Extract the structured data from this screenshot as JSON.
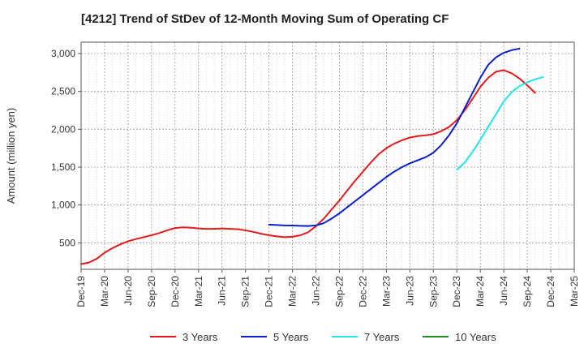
{
  "chart_data": {
    "type": "line",
    "title": "[4212]  Trend of StDev of 12-Month Moving Sum of Operating CF",
    "xlabel": "",
    "ylabel": "Amount (million yen)",
    "ylim": [
      150,
      3150
    ],
    "xlim": [
      "Dec-19",
      "Mar-25"
    ],
    "y_ticks": [
      500,
      1000,
      1500,
      2000,
      2500,
      3000
    ],
    "y_tick_labels": [
      "500",
      "1,000",
      "1,500",
      "2,000",
      "2,500",
      "3,000"
    ],
    "x_ticks": [
      "Dec-19",
      "Mar-20",
      "Jun-20",
      "Sep-20",
      "Dec-20",
      "Mar-21",
      "Jun-21",
      "Sep-21",
      "Dec-21",
      "Mar-22",
      "Jun-22",
      "Sep-22",
      "Dec-22",
      "Mar-23",
      "Jun-23",
      "Sep-23",
      "Dec-23",
      "Mar-24",
      "Jun-24",
      "Sep-24",
      "Dec-24",
      "Mar-25"
    ],
    "grid": true,
    "legend_position": "bottom",
    "series": [
      {
        "name": "3 Years",
        "color": "#e31a1c",
        "points": [
          [
            "Dec-19",
            220
          ],
          [
            "Jan-20",
            240
          ],
          [
            "Feb-20",
            290
          ],
          [
            "Mar-20",
            370
          ],
          [
            "Apr-20",
            430
          ],
          [
            "May-20",
            480
          ],
          [
            "Jun-20",
            520
          ],
          [
            "Jul-20",
            550
          ],
          [
            "Aug-20",
            575
          ],
          [
            "Sep-20",
            600
          ],
          [
            "Oct-20",
            630
          ],
          [
            "Nov-20",
            665
          ],
          [
            "Dec-20",
            695
          ],
          [
            "Jan-21",
            705
          ],
          [
            "Feb-21",
            700
          ],
          [
            "Mar-21",
            690
          ],
          [
            "Apr-21",
            685
          ],
          [
            "May-21",
            685
          ],
          [
            "Jun-21",
            690
          ],
          [
            "Jul-21",
            685
          ],
          [
            "Aug-21",
            680
          ],
          [
            "Sep-21",
            665
          ],
          [
            "Oct-21",
            645
          ],
          [
            "Nov-21",
            620
          ],
          [
            "Dec-21",
            600
          ],
          [
            "Jan-22",
            585
          ],
          [
            "Feb-22",
            575
          ],
          [
            "Mar-22",
            580
          ],
          [
            "Apr-22",
            600
          ],
          [
            "May-22",
            640
          ],
          [
            "Jun-22",
            720
          ],
          [
            "Jul-22",
            820
          ],
          [
            "Aug-22",
            940
          ],
          [
            "Sep-22",
            1060
          ],
          [
            "Oct-22",
            1190
          ],
          [
            "Nov-22",
            1320
          ],
          [
            "Dec-22",
            1440
          ],
          [
            "Jan-23",
            1560
          ],
          [
            "Feb-23",
            1670
          ],
          [
            "Mar-23",
            1750
          ],
          [
            "Apr-23",
            1810
          ],
          [
            "May-23",
            1855
          ],
          [
            "Jun-23",
            1890
          ],
          [
            "Jul-23",
            1910
          ],
          [
            "Aug-23",
            1920
          ],
          [
            "Sep-23",
            1935
          ],
          [
            "Oct-23",
            1975
          ],
          [
            "Nov-23",
            2030
          ],
          [
            "Dec-23",
            2120
          ],
          [
            "Jan-24",
            2250
          ],
          [
            "Feb-24",
            2400
          ],
          [
            "Mar-24",
            2560
          ],
          [
            "Apr-24",
            2680
          ],
          [
            "May-24",
            2760
          ],
          [
            "Jun-24",
            2780
          ],
          [
            "Jul-24",
            2740
          ],
          [
            "Aug-24",
            2670
          ],
          [
            "Sep-24",
            2580
          ],
          [
            "Oct-24",
            2480
          ]
        ]
      },
      {
        "name": "5 Years",
        "color": "#0a1fc8",
        "points": [
          [
            "Dec-21",
            740
          ],
          [
            "Jan-22",
            735
          ],
          [
            "Feb-22",
            730
          ],
          [
            "Mar-22",
            728
          ],
          [
            "Apr-22",
            725
          ],
          [
            "May-22",
            722
          ],
          [
            "Jun-22",
            730
          ],
          [
            "Jul-22",
            760
          ],
          [
            "Aug-22",
            820
          ],
          [
            "Sep-22",
            890
          ],
          [
            "Oct-22",
            970
          ],
          [
            "Nov-22",
            1050
          ],
          [
            "Dec-22",
            1130
          ],
          [
            "Jan-23",
            1210
          ],
          [
            "Feb-23",
            1290
          ],
          [
            "Mar-23",
            1370
          ],
          [
            "Apr-23",
            1440
          ],
          [
            "May-23",
            1500
          ],
          [
            "Jun-23",
            1550
          ],
          [
            "Jul-23",
            1590
          ],
          [
            "Aug-23",
            1630
          ],
          [
            "Sep-23",
            1690
          ],
          [
            "Oct-23",
            1790
          ],
          [
            "Nov-23",
            1920
          ],
          [
            "Dec-23",
            2080
          ],
          [
            "Jan-24",
            2280
          ],
          [
            "Feb-24",
            2480
          ],
          [
            "Mar-24",
            2680
          ],
          [
            "Apr-24",
            2850
          ],
          [
            "May-24",
            2950
          ],
          [
            "Jun-24",
            3010
          ],
          [
            "Jul-24",
            3045
          ],
          [
            "Aug-24",
            3065
          ]
        ]
      },
      {
        "name": "7 Years",
        "color": "#22e6e6",
        "points": [
          [
            "Dec-23",
            1465
          ],
          [
            "Jan-24",
            1560
          ],
          [
            "Feb-24",
            1700
          ],
          [
            "Mar-24",
            1860
          ],
          [
            "Apr-24",
            2030
          ],
          [
            "May-24",
            2200
          ],
          [
            "Jun-24",
            2370
          ],
          [
            "Jul-24",
            2490
          ],
          [
            "Aug-24",
            2570
          ],
          [
            "Sep-24",
            2620
          ],
          [
            "Oct-24",
            2660
          ],
          [
            "Nov-24",
            2690
          ]
        ]
      },
      {
        "name": "10 Years",
        "color": "#1f8a1f",
        "points": []
      }
    ]
  }
}
